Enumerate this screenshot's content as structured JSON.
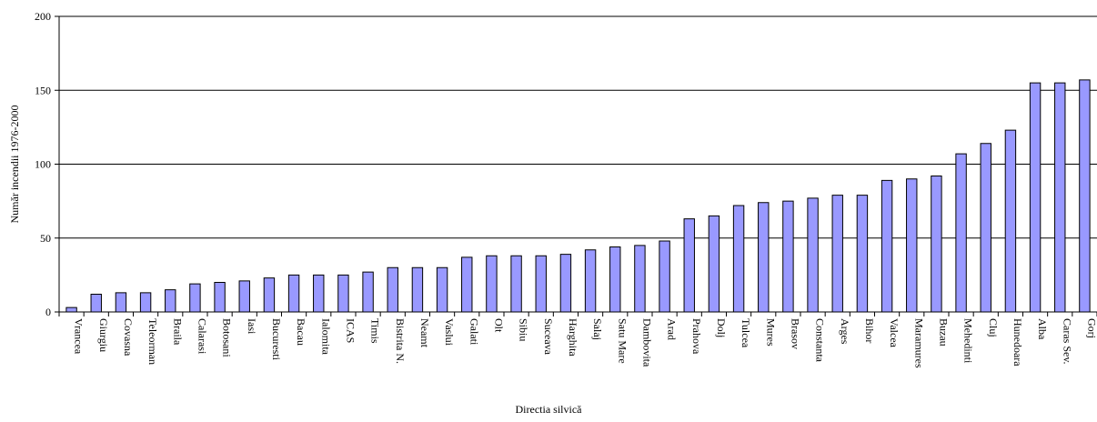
{
  "chart_data": {
    "type": "bar",
    "xlabel": "Directia silvică",
    "ylabel": "Număr incendii 1976-2000",
    "ylim": [
      0,
      200
    ],
    "yticks": [
      0,
      50,
      100,
      150,
      200
    ],
    "grid": true,
    "categories": [
      "Vrancea",
      "Giurgiu",
      "Covasna",
      "Teleorman",
      "Braila",
      "Calarasi",
      "Botosani",
      "Iasi",
      "Bucuresti",
      "Bacau",
      "Ialomita",
      "ICAS",
      "Timis",
      "Bistrita N.",
      "Neamt",
      "Vaslui",
      "Galati",
      "Olt",
      "Sibiu",
      "Suceava",
      "Harghita",
      "Salaj",
      "Satu Mare",
      "Dambovita",
      "Arad",
      "Prahova",
      "Dolj",
      "Tulcea",
      "Mures",
      "Brasov",
      "Constanta",
      "Arges",
      "Bihor",
      "Valcea",
      "Maramures",
      "Buzau",
      "Mehedinti",
      "Cluj",
      "Hunedoara",
      "Alba",
      "Caras Sev.",
      "Gorj"
    ],
    "values": [
      3,
      12,
      13,
      13,
      15,
      19,
      20,
      21,
      23,
      25,
      25,
      25,
      27,
      30,
      30,
      30,
      37,
      38,
      38,
      38,
      39,
      42,
      44,
      45,
      48,
      63,
      65,
      72,
      74,
      75,
      77,
      79,
      79,
      89,
      90,
      92,
      107,
      114,
      123,
      155,
      155,
      157
    ],
    "colors": {
      "bar_fill": "#9999ff",
      "bar_stroke": "#000000",
      "gridline": "#000000"
    }
  }
}
